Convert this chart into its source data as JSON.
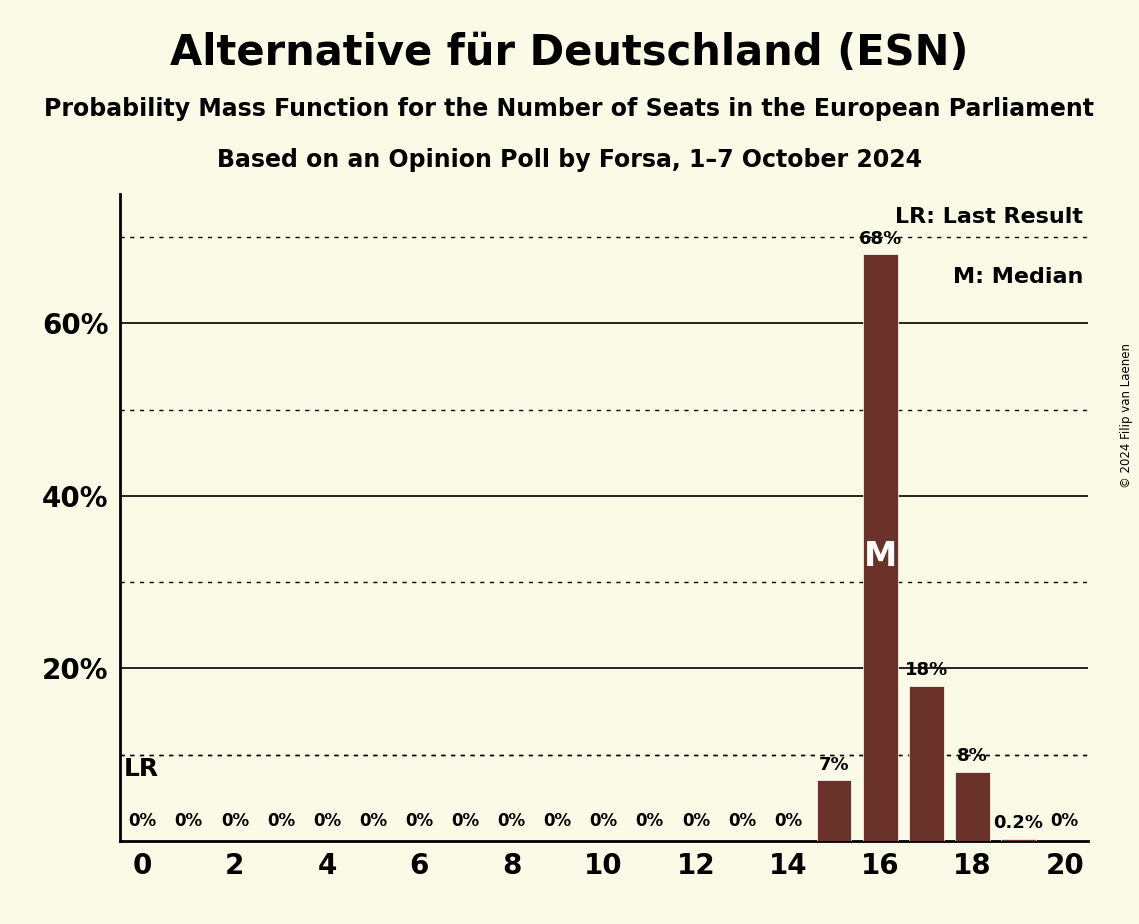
{
  "title": "Alternative für Deutschland (ESN)",
  "subtitle": "Probability Mass Function for the Number of Seats in the European Parliament",
  "subsubtitle": "Based on an Opinion Poll by Forsa, 1–7 October 2024",
  "copyright": "© 2024 Filip van Laenen",
  "seats": [
    0,
    1,
    2,
    3,
    4,
    5,
    6,
    7,
    8,
    9,
    10,
    11,
    12,
    13,
    14,
    15,
    16,
    17,
    18,
    19,
    20
  ],
  "probabilities": [
    0,
    0,
    0,
    0,
    0,
    0,
    0,
    0,
    0,
    0,
    0,
    0,
    0,
    0,
    0,
    7,
    68,
    18,
    8,
    0.2,
    0
  ],
  "bar_color": "#6B3229",
  "background_color": "#FAFAE6",
  "xlim": [
    -0.5,
    20.5
  ],
  "ylim": [
    0,
    75
  ],
  "xticks": [
    0,
    2,
    4,
    6,
    8,
    10,
    12,
    14,
    16,
    18,
    20
  ],
  "solid_grid_lines": [
    20,
    40,
    60
  ],
  "dotted_grid_lines": [
    10,
    30,
    50,
    70
  ],
  "lr_value": 10,
  "median_seat": 16,
  "legend_text1": "LR: Last Result",
  "legend_text2": "M: Median",
  "bar_width": 0.75,
  "title_fontsize": 30,
  "subtitle_fontsize": 17,
  "subsubtitle_fontsize": 17,
  "bar_label_fontsize": 13,
  "zero_label_fontsize": 12,
  "tick_fontsize": 20,
  "ytick_fontsize": 20,
  "legend_fontsize": 16,
  "lr_fontsize": 18,
  "median_fontsize": 24
}
